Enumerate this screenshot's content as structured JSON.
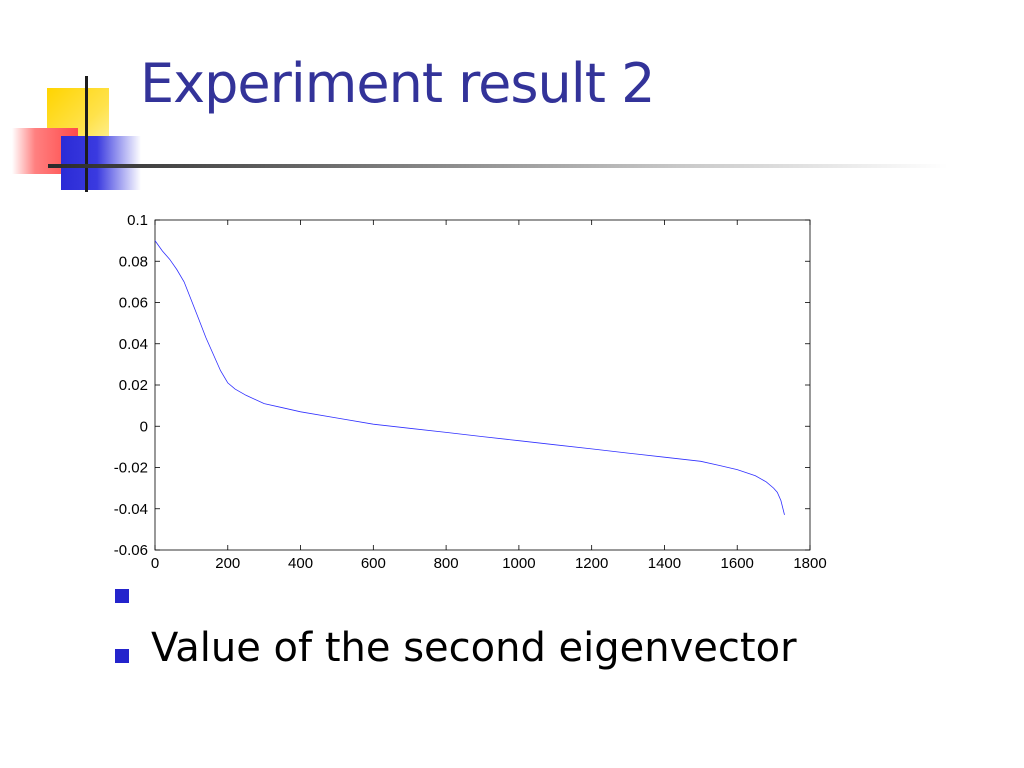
{
  "slide": {
    "title": "Experiment result 2",
    "bullets": [
      "",
      "Value of the second eigenvector"
    ]
  },
  "colors": {
    "title": "#333399",
    "bullet": "#2424cc",
    "series": "#3030ff"
  },
  "chart_data": {
    "type": "line",
    "title": "",
    "xlabel": "",
    "ylabel": "",
    "xlim": [
      0,
      1800
    ],
    "ylim": [
      -0.06,
      0.1
    ],
    "xticks": [
      0,
      200,
      400,
      600,
      800,
      1000,
      1200,
      1400,
      1600,
      1800
    ],
    "yticks": [
      -0.06,
      -0.04,
      -0.02,
      0,
      0.02,
      0.04,
      0.06,
      0.08,
      0.1
    ],
    "xtick_labels": [
      "0",
      "200",
      "400",
      "600",
      "800",
      "1000",
      "1200",
      "1400",
      "1600",
      "1800"
    ],
    "ytick_labels": [
      "-0.06",
      "-0.04",
      "-0.02",
      "0",
      "0.02",
      "0.04",
      "0.06",
      "0.08",
      "0.1"
    ],
    "grid": false,
    "series": [
      {
        "name": "",
        "x": [
          0,
          20,
          40,
          60,
          80,
          100,
          120,
          140,
          160,
          180,
          200,
          220,
          250,
          300,
          350,
          400,
          500,
          600,
          700,
          800,
          900,
          1000,
          1100,
          1200,
          1300,
          1400,
          1500,
          1550,
          1600,
          1650,
          1680,
          1700,
          1710,
          1720,
          1730
        ],
        "y": [
          0.09,
          0.085,
          0.081,
          0.076,
          0.07,
          0.061,
          0.052,
          0.043,
          0.035,
          0.027,
          0.021,
          0.018,
          0.015,
          0.011,
          0.009,
          0.007,
          0.004,
          0.001,
          -0.001,
          -0.003,
          -0.005,
          -0.007,
          -0.009,
          -0.011,
          -0.013,
          -0.015,
          -0.017,
          -0.019,
          -0.021,
          -0.024,
          -0.027,
          -0.03,
          -0.032,
          -0.036,
          -0.043
        ]
      }
    ]
  }
}
